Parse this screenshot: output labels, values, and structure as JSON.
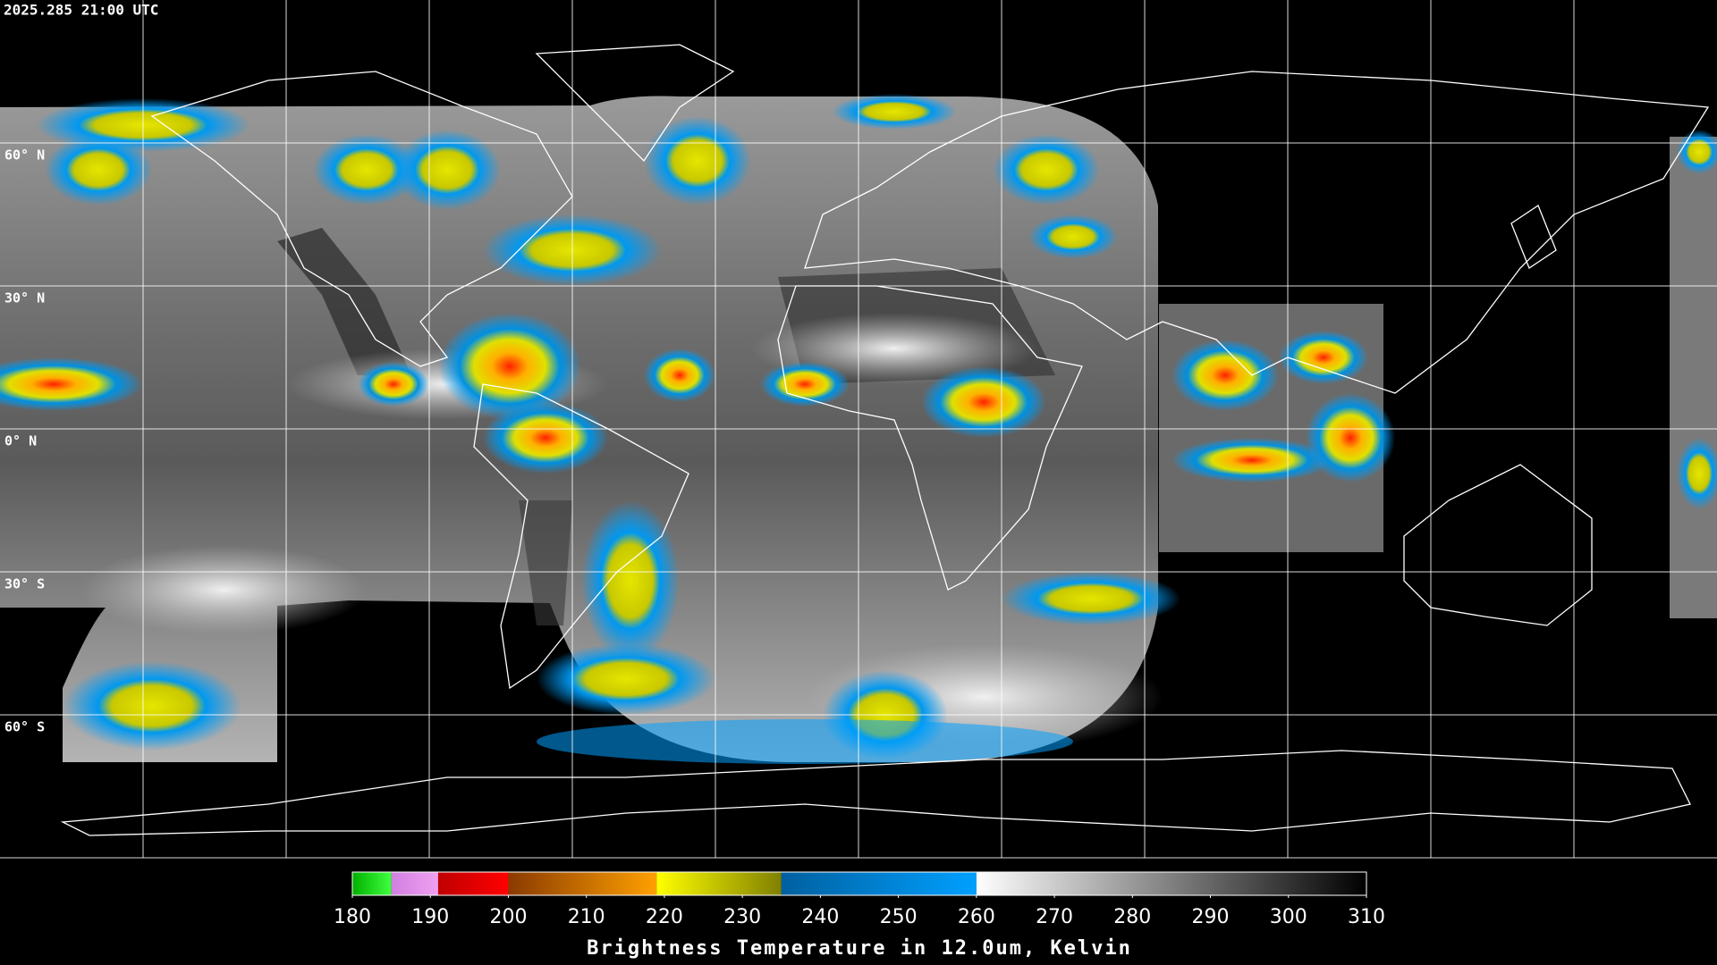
{
  "header": {
    "timestamp": "2025.285 21:00 UTC"
  },
  "map": {
    "lat_labels": [
      "60° N",
      "30° N",
      "0° N",
      "30° S",
      "60° S"
    ]
  },
  "colorbar": {
    "label": "Brightness Temperature in 12.0um, Kelvin",
    "range": [
      180,
      310
    ],
    "ticks": [
      180,
      190,
      200,
      210,
      220,
      230,
      240,
      250,
      260,
      270,
      280,
      290,
      300,
      310
    ],
    "segments": [
      {
        "from": 180,
        "to": 185,
        "colors": [
          "#00b000",
          "#40ff40"
        ]
      },
      {
        "from": 185,
        "to": 191,
        "colors": [
          "#d080e0",
          "#f0a0f0"
        ]
      },
      {
        "from": 191,
        "to": 200,
        "colors": [
          "#c00000",
          "#ff0000"
        ]
      },
      {
        "from": 200,
        "to": 219,
        "colors": [
          "#8a3a00",
          "#ffa000"
        ]
      },
      {
        "from": 219,
        "to": 235,
        "colors": [
          "#ffff00",
          "#808000"
        ]
      },
      {
        "from": 235,
        "to": 260,
        "colors": [
          "#0060a0",
          "#00a0ff"
        ]
      },
      {
        "from": 260,
        "to": 310,
        "colors": [
          "#ffffff",
          "#000000"
        ]
      }
    ]
  }
}
